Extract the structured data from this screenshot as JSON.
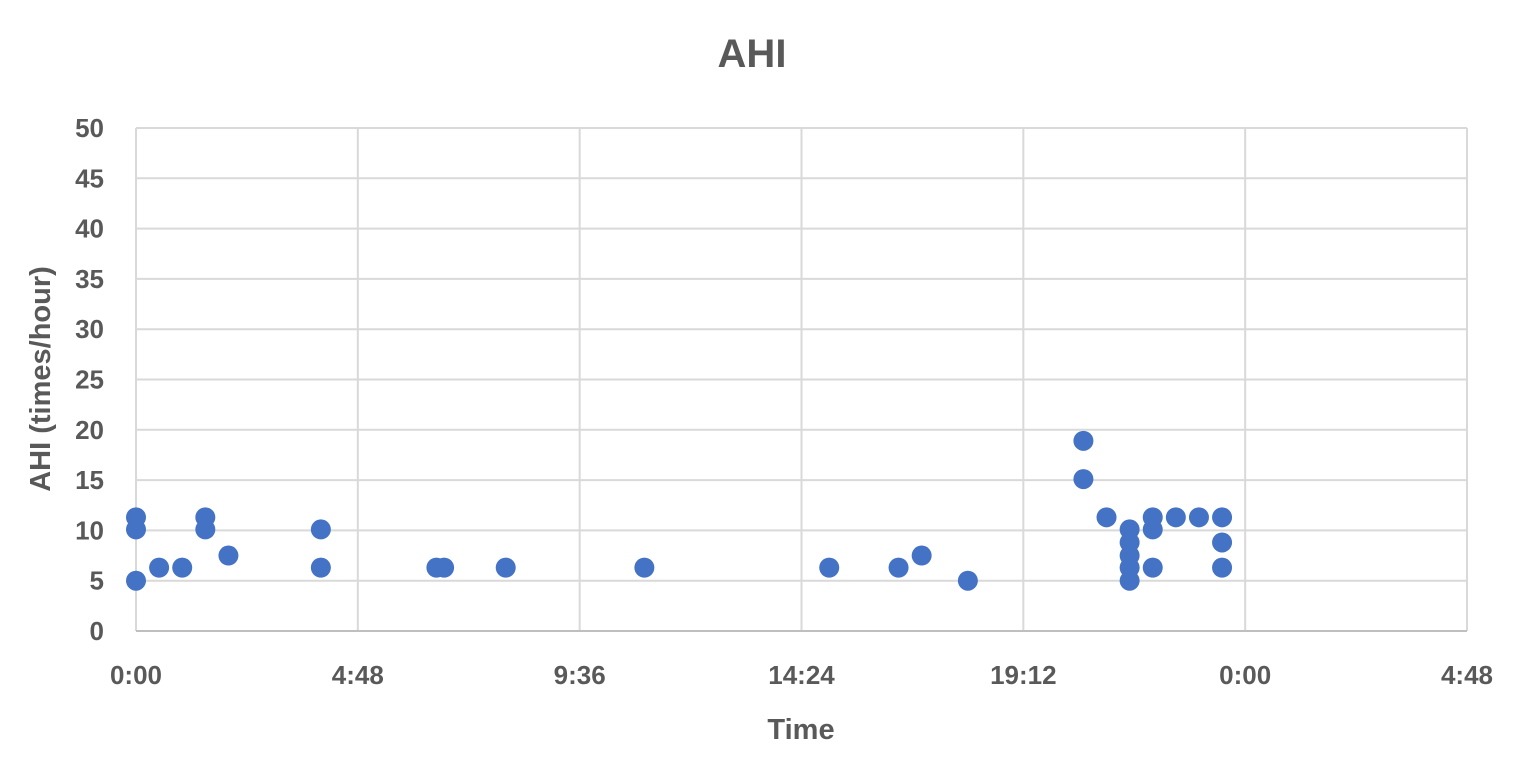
{
  "chart_data": {
    "type": "scatter",
    "title": "AHI",
    "xlabel": "Time",
    "ylabel": "AHI (times/hour)",
    "x_unit": "hours since 0:00",
    "xlim": [
      0,
      28.8
    ],
    "ylim": [
      0,
      50
    ],
    "x_ticks": [
      "0:00",
      "4:48",
      "9:36",
      "14:24",
      "19:12",
      "0:00",
      "4:48"
    ],
    "y_ticks": [
      "0",
      "5",
      "10",
      "15",
      "20",
      "25",
      "30",
      "35",
      "40",
      "45",
      "50"
    ],
    "grid": true,
    "legend": "none",
    "marker_color": "#4472C4",
    "series": [
      {
        "points": [
          {
            "x": "0:00",
            "y": 11.3
          },
          {
            "x": "0:00",
            "y": 10.1
          },
          {
            "x": "0:00",
            "y": 5.0
          },
          {
            "x": "0:30",
            "y": 6.3
          },
          {
            "x": "1:00",
            "y": 6.3
          },
          {
            "x": "1:30",
            "y": 11.3
          },
          {
            "x": "1:30",
            "y": 10.1
          },
          {
            "x": "2:00",
            "y": 7.5
          },
          {
            "x": "4:00",
            "y": 10.1
          },
          {
            "x": "4:00",
            "y": 6.3
          },
          {
            "x": "6:30",
            "y": 6.3
          },
          {
            "x": "6:40",
            "y": 6.3
          },
          {
            "x": "8:00",
            "y": 6.3
          },
          {
            "x": "11:00",
            "y": 6.3
          },
          {
            "x": "15:00",
            "y": 6.3
          },
          {
            "x": "16:30",
            "y": 6.3
          },
          {
            "x": "17:00",
            "y": 7.5
          },
          {
            "x": "18:00",
            "y": 5.0
          },
          {
            "x": "20:30",
            "y": 18.9
          },
          {
            "x": "20:30",
            "y": 15.1
          },
          {
            "x": "21:00",
            "y": 11.3
          },
          {
            "x": "21:30",
            "y": 10.1
          },
          {
            "x": "21:30",
            "y": 8.8
          },
          {
            "x": "21:30",
            "y": 7.5
          },
          {
            "x": "21:30",
            "y": 6.3
          },
          {
            "x": "21:30",
            "y": 5.0
          },
          {
            "x": "22:00",
            "y": 11.3
          },
          {
            "x": "22:00",
            "y": 10.1
          },
          {
            "x": "22:00",
            "y": 6.3
          },
          {
            "x": "22:30",
            "y": 11.3
          },
          {
            "x": "23:00",
            "y": 11.3
          },
          {
            "x": "23:30",
            "y": 11.3
          },
          {
            "x": "23:30",
            "y": 8.8
          },
          {
            "x": "23:30",
            "y": 6.3
          }
        ]
      }
    ]
  }
}
